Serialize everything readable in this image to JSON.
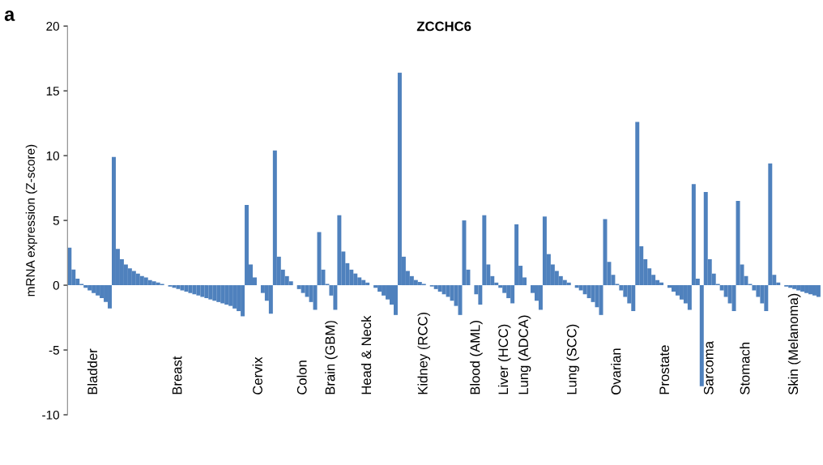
{
  "chart_data": {
    "type": "bar",
    "title": "ZCCHC6",
    "ylabel": "mRNA expression (Z-score)",
    "annotations": [
      "a"
    ],
    "ylim": [
      -10,
      20
    ],
    "yticks": [
      -10,
      -5,
      0,
      5,
      10,
      15,
      20
    ],
    "color": "#4f81bd",
    "categories": [
      null,
      null,
      null,
      null,
      null,
      null,
      "Bladder",
      null,
      null,
      null,
      null,
      null,
      null,
      null,
      null,
      null,
      null,
      null,
      null,
      null,
      null,
      null,
      null,
      null,
      null,
      null,
      null,
      "Breast",
      null,
      null,
      null,
      null,
      null,
      null,
      null,
      null,
      null,
      null,
      null,
      null,
      null,
      null,
      null,
      null,
      null,
      null,
      null,
      "Cervix",
      null,
      null,
      null,
      null,
      null,
      null,
      null,
      null,
      null,
      null,
      "Colon",
      null,
      null,
      null,
      null,
      null,
      null,
      "Brain (GBM)",
      null,
      null,
      null,
      null,
      null,
      null,
      null,
      null,
      "Head & Neck",
      null,
      null,
      null,
      null,
      null,
      null,
      null,
      null,
      null,
      null,
      null,
      null,
      null,
      "Kidney (RCC)",
      null,
      null,
      null,
      null,
      null,
      null,
      null,
      null,
      null,
      null,
      null,
      null,
      "Blood (AML)",
      null,
      null,
      null,
      null,
      null,
      null,
      "Liver (HCC)",
      null,
      null,
      null,
      null,
      "Lung (ADCA)",
      null,
      null,
      null,
      null,
      null,
      null,
      null,
      null,
      null,
      null,
      null,
      "Lung (SCC)",
      null,
      null,
      null,
      null,
      null,
      null,
      null,
      null,
      null,
      null,
      "Ovarian",
      null,
      null,
      null,
      null,
      null,
      null,
      null,
      null,
      null,
      null,
      null,
      "Prostate",
      null,
      null,
      null,
      null,
      null,
      null,
      null,
      null,
      null,
      null,
      "Sarcoma",
      null,
      null,
      null,
      null,
      null,
      null,
      null,
      null,
      "Stomach",
      null,
      null,
      null,
      null,
      null,
      null,
      null,
      null,
      null,
      null,
      null,
      "Skin (Melanoma)",
      null,
      null,
      null,
      null,
      null,
      null
    ],
    "values": [
      2.9,
      1.2,
      0.5,
      0.1,
      -0.2,
      -0.4,
      -0.6,
      -0.8,
      -1.0,
      -1.3,
      -1.8,
      9.9,
      2.8,
      2.0,
      1.6,
      1.3,
      1.1,
      0.9,
      0.7,
      0.6,
      0.4,
      0.3,
      0.2,
      0.1,
      0,
      -0.1,
      -0.2,
      -0.3,
      -0.4,
      -0.5,
      -0.6,
      -0.7,
      -0.8,
      -0.9,
      -1.0,
      -1.1,
      -1.2,
      -1.3,
      -1.4,
      -1.5,
      -1.6,
      -1.8,
      -2.0,
      -2.4,
      6.2,
      1.6,
      0.6,
      0,
      -0.6,
      -1.2,
      -2.2,
      10.4,
      2.2,
      1.2,
      0.7,
      0.3,
      0,
      -0.3,
      -0.6,
      -0.9,
      -1.3,
      -1.9,
      4.1,
      1.2,
      0.1,
      -0.8,
      -1.9,
      5.4,
      2.6,
      1.7,
      1.2,
      0.9,
      0.6,
      0.4,
      0.2,
      0,
      -0.2,
      -0.5,
      -0.8,
      -1.1,
      -1.5,
      -2.3,
      16.4,
      2.2,
      1.1,
      0.7,
      0.4,
      0.25,
      0.1,
      0,
      -0.1,
      -0.3,
      -0.5,
      -0.7,
      -0.9,
      -1.2,
      -1.6,
      -2.3,
      5.0,
      1.2,
      0,
      -0.7,
      -1.5,
      5.4,
      1.6,
      0.7,
      0.2,
      -0.2,
      -0.6,
      -1.0,
      -1.4,
      4.7,
      1.5,
      0.6,
      0,
      -0.6,
      -1.2,
      -1.9,
      5.3,
      2.4,
      1.6,
      1.1,
      0.7,
      0.4,
      0.2,
      0,
      -0.2,
      -0.4,
      -0.7,
      -1.0,
      -1.3,
      -1.7,
      -2.3,
      5.1,
      1.8,
      0.8,
      0.1,
      -0.4,
      -0.9,
      -1.4,
      -2.0,
      12.6,
      3.0,
      2.0,
      1.3,
      0.8,
      0.4,
      0.2,
      0,
      -0.2,
      -0.5,
      -0.8,
      -1.1,
      -1.4,
      -1.9,
      7.8,
      0.5,
      -7.8,
      7.2,
      2.0,
      0.9,
      0.1,
      -0.4,
      -0.9,
      -1.4,
      -2.0,
      6.5,
      1.6,
      0.7,
      0.1,
      -0.4,
      -0.9,
      -1.4,
      -2.0,
      9.4,
      0.8,
      0.2,
      0,
      -0.1,
      -0.2,
      -0.3,
      -0.4,
      -0.5,
      -0.6,
      -0.7,
      -0.8,
      -0.9
    ]
  }
}
